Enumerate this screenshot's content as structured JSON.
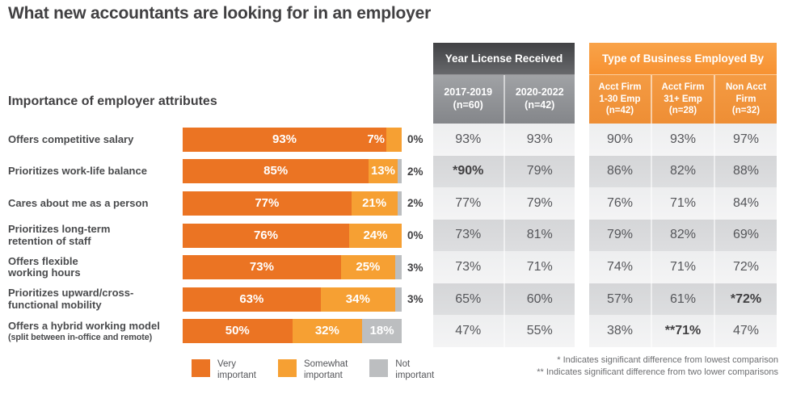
{
  "title": "What new accountants are looking for in an employer",
  "subtitle": "Importance of employer attributes",
  "colors": {
    "very_important": "#EB7423",
    "somewhat_important": "#F6A033",
    "not_important": "#BCBEC0",
    "gray_table_header": "#515256",
    "gray_table_subheader": "#919396",
    "orange_table_header": "#F89B3C",
    "orange_table_subheader": "#F0943B",
    "row_band_light": "#F0F0F1",
    "row_band_dark": "#D8D9DB",
    "text_dark": "#414042"
  },
  "chart_data": [
    {
      "type": "bar",
      "orientation": "horizontal",
      "stacked": true,
      "title": "Importance of employer attributes",
      "xlim": [
        0,
        100
      ],
      "categories": [
        "Offers competitive salary",
        "Prioritizes work-life balance",
        "Cares about me as a person",
        "Prioritizes long-term retention of staff",
        "Offers flexible working hours",
        "Prioritizes upward/cross-functional mobility",
        "Offers a hybrid working model (split between in-office and remote)"
      ],
      "category_display": [
        [
          "Offers competitive salary"
        ],
        [
          "Prioritizes work-life balance"
        ],
        [
          "Cares about me as a person"
        ],
        [
          "Prioritizes long-term",
          "retention of staff"
        ],
        [
          "Offers flexible",
          "working hours"
        ],
        [
          "Prioritizes upward/cross-",
          "functional mobility"
        ],
        [
          "Offers a hybrid working model"
        ]
      ],
      "category_notes": [
        "",
        "",
        "",
        "",
        "",
        "",
        "(split between in-office and remote)"
      ],
      "series": [
        {
          "name": "Very important",
          "color": "#EB7423",
          "values": [
            93,
            85,
            77,
            76,
            73,
            63,
            50
          ]
        },
        {
          "name": "Somewhat important",
          "color": "#F6A033",
          "values": [
            7,
            13,
            21,
            24,
            25,
            34,
            32
          ]
        },
        {
          "name": "Not important",
          "color": "#BCBEC0",
          "values": [
            0,
            2,
            2,
            0,
            3,
            3,
            18
          ]
        }
      ],
      "outside_labels": [
        "0%",
        "2%",
        "2%",
        "0%",
        "3%",
        "3%",
        ""
      ],
      "legend_position": "bottom"
    },
    {
      "type": "table",
      "title": "Year License Received",
      "theme": "gray",
      "column_headers": [
        [
          "2017-2019",
          "(n=60)"
        ],
        [
          "2020-2022",
          "(n=42)"
        ]
      ],
      "rows": [
        [
          "93%",
          "93%"
        ],
        [
          "*90%",
          "79%"
        ],
        [
          "77%",
          "79%"
        ],
        [
          "73%",
          "81%"
        ],
        [
          "73%",
          "71%"
        ],
        [
          "65%",
          "60%"
        ],
        [
          "47%",
          "55%"
        ]
      ]
    },
    {
      "type": "table",
      "title": "Type of Business Employed By",
      "theme": "orange",
      "column_headers": [
        [
          "Acct Firm",
          "1-30 Emp",
          "(n=42)"
        ],
        [
          "Acct Firm",
          "31+ Emp",
          "(n=28)"
        ],
        [
          "Non Acct",
          "Firm",
          "(n=32)"
        ]
      ],
      "rows": [
        [
          "90%",
          "93%",
          "97%"
        ],
        [
          "86%",
          "82%",
          "88%"
        ],
        [
          "76%",
          "71%",
          "84%"
        ],
        [
          "79%",
          "82%",
          "69%"
        ],
        [
          "74%",
          "71%",
          "72%"
        ],
        [
          "57%",
          "61%",
          "*72%"
        ],
        [
          "38%",
          "**71%",
          "47%"
        ]
      ]
    }
  ],
  "legend": {
    "items": [
      {
        "lines": [
          "Very",
          "important"
        ]
      },
      {
        "lines": [
          "Somewhat",
          "important"
        ]
      },
      {
        "lines": [
          "Not",
          "important"
        ]
      }
    ]
  },
  "footnotes": [
    "* Indicates significant difference from lowest comparison",
    "** Indicates significant difference from two lower comparisons"
  ]
}
